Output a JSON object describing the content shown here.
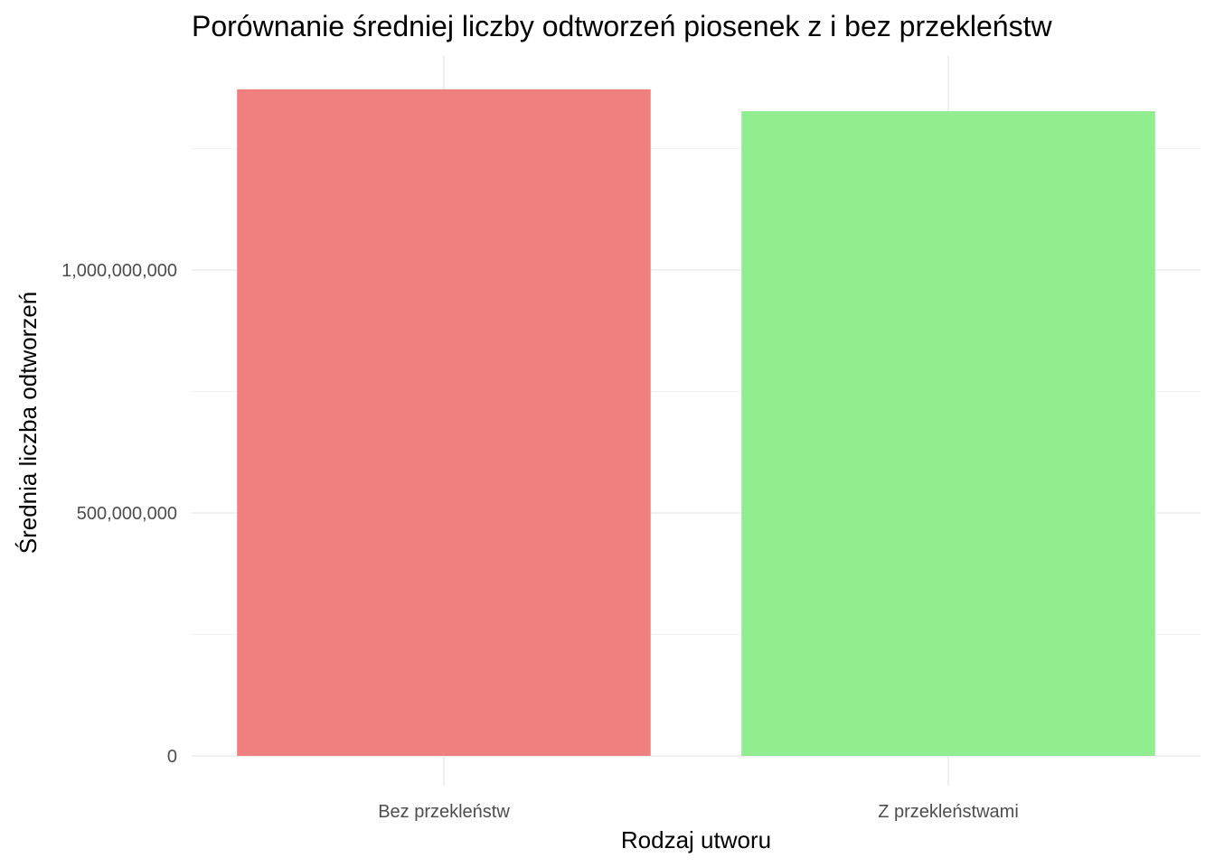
{
  "chart_data": {
    "type": "bar",
    "title": "Porównanie średniej liczby odtworzeń piosenek z i bez przekleństw",
    "xlabel": "Rodzaj utworu",
    "ylabel": "Średnia liczba odtworzeń",
    "categories": [
      "Bez przekleństw",
      "Z przekleństwami"
    ],
    "values": [
      1372000000,
      1327000000
    ],
    "colors": [
      "#f08080",
      "#90ee90"
    ],
    "yticks": [
      0,
      500000000,
      1000000000
    ],
    "ytick_labels": [
      "0",
      "500,000,000",
      "1,000,000,000"
    ],
    "ylim": [
      0,
      1440000000
    ],
    "grid": true,
    "legend": "none"
  }
}
